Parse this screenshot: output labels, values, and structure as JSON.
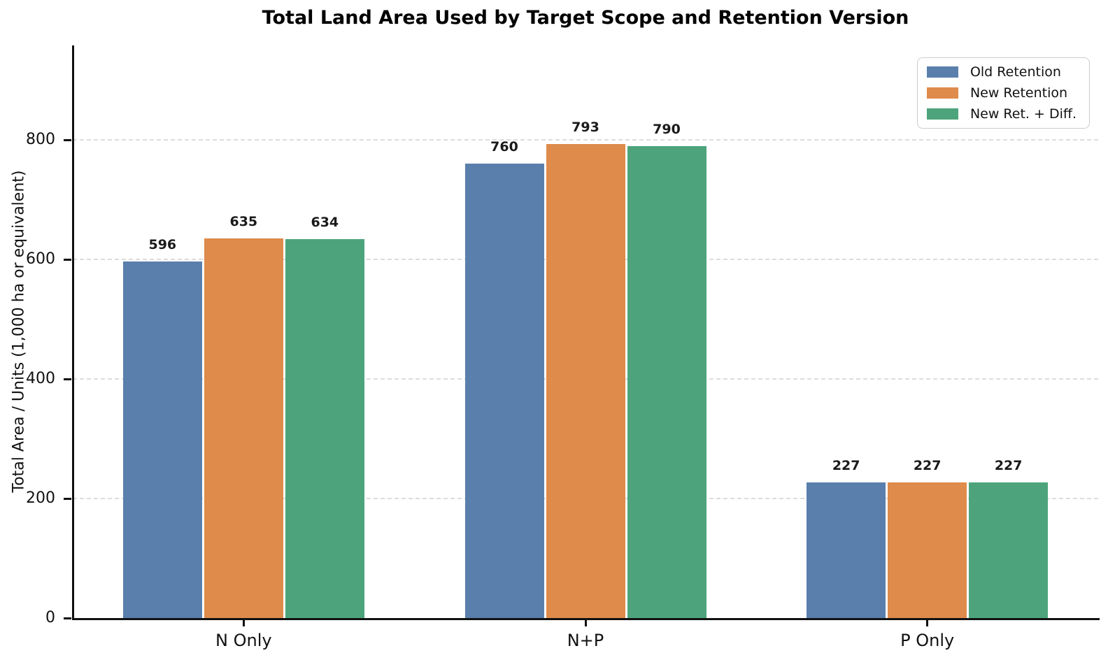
{
  "chart_data": {
    "type": "bar",
    "title": "Total Land Area Used by Target Scope and Retention Version",
    "xlabel": "",
    "ylabel": "Total Area / Units (1,000 ha or equivalent)",
    "categories": [
      "N Only",
      "N+P",
      "P Only"
    ],
    "series": [
      {
        "name": "Old Retention",
        "color": "#5A7FAC",
        "values": [
          596,
          760,
          227
        ]
      },
      {
        "name": "New Retention",
        "color": "#DE8B4C",
        "values": [
          635,
          793,
          227
        ]
      },
      {
        "name": "New Ret. + Diff.",
        "color": "#4DA47C",
        "values": [
          634,
          790,
          227
        ]
      }
    ],
    "yticks": [
      0,
      200,
      400,
      600,
      800
    ],
    "ylim": [
      0,
      958
    ],
    "grid": "horizontal-dashed",
    "legend_position": "upper-right",
    "value_labels": true
  },
  "colors": {
    "background": "#ffffff",
    "spine": "#111111",
    "gridline": "#dcdcdc",
    "text": "#111111",
    "legend_border": "#cccccc"
  }
}
